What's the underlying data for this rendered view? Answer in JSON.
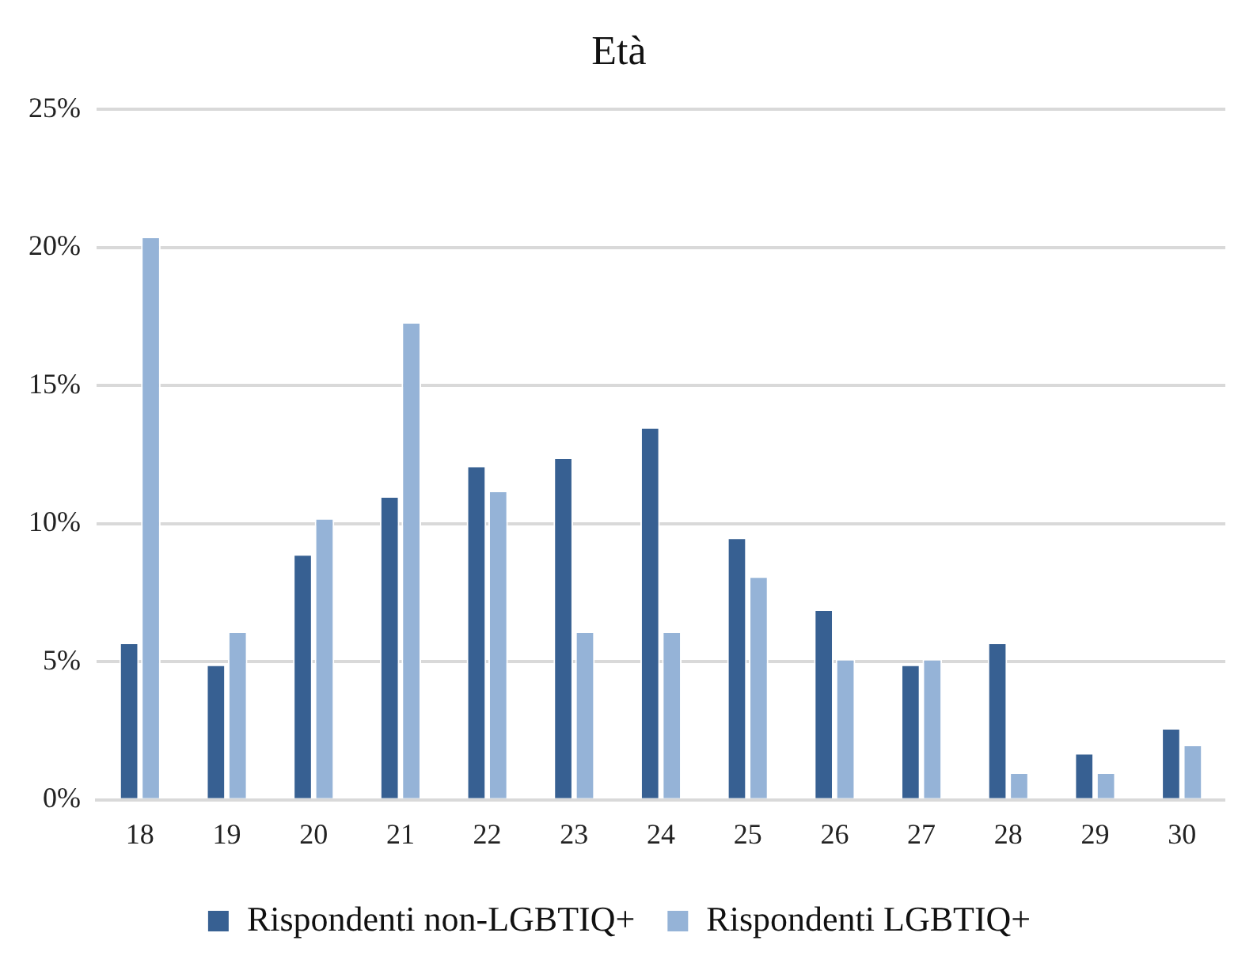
{
  "chart_data": {
    "type": "bar",
    "title": "Età",
    "categories": [
      "18",
      "19",
      "20",
      "21",
      "22",
      "23",
      "24",
      "25",
      "26",
      "27",
      "28",
      "29",
      "30"
    ],
    "series": [
      {
        "name": "Rispondenti non-LGBTIQ+",
        "color": "#376092",
        "values": [
          5.7,
          4.9,
          8.9,
          11,
          12.1,
          12.4,
          13.5,
          9.5,
          6.9,
          4.9,
          5.7,
          1.7,
          2.6
        ]
      },
      {
        "name": "Rispondenti LGBTIQ+",
        "color": "#95b3d7",
        "values": [
          20.4,
          6.1,
          10.2,
          17.3,
          11.2,
          6.1,
          6.1,
          8.1,
          5.1,
          5.1,
          1,
          1,
          2
        ]
      }
    ],
    "ylim": [
      0,
      25
    ],
    "yticks": [
      {
        "value": 0,
        "label": "0%"
      },
      {
        "value": 5,
        "label": "5%"
      },
      {
        "value": 10,
        "label": "10%"
      },
      {
        "value": 15,
        "label": "15%"
      },
      {
        "value": 20,
        "label": "20%"
      },
      {
        "value": 25,
        "label": "25%"
      }
    ],
    "grid": "y",
    "legend": "bottom"
  }
}
